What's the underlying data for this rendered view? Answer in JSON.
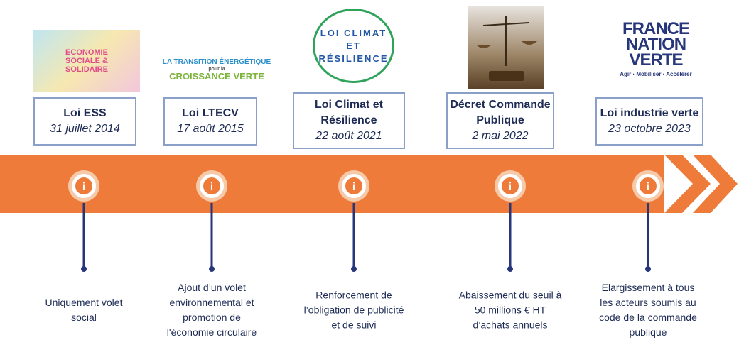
{
  "info_icon": "i",
  "events": [
    {
      "logo": {
        "lines": [
          "ÉCONOMIE",
          "SOCIALE &",
          "SOLIDAIRE"
        ]
      },
      "title": [
        "Loi ESS"
      ],
      "date": "31 juillet 2014",
      "description": [
        "Uniquement volet",
        "social"
      ]
    },
    {
      "logo": {
        "lines": [
          "LA TRANSITION ÉNERGÉTIQUE",
          "pour la",
          "CROISSANCE VERTE"
        ]
      },
      "title": [
        "Loi LTECV"
      ],
      "date": "17 août 2015",
      "description": [
        "Ajout d’un volet",
        "environnemental et",
        "promotion de",
        "l'économie circulaire"
      ]
    },
    {
      "logo": {
        "lines": [
          "LOI CLIMAT",
          "ET",
          "RÉSILIENCE"
        ]
      },
      "title": [
        "Loi Climat et",
        "Résilience"
      ],
      "date": "22 août 2021",
      "description": [
        "Renforcement de",
        "l’obligation de publicité",
        "et de suivi"
      ]
    },
    {
      "title": [
        "Décret Commande",
        "Publique"
      ],
      "date": "2 mai 2022",
      "description": [
        "Abaissement du seuil à",
        "50 millions € HT",
        "d’achats annuels"
      ]
    },
    {
      "logo": {
        "lines": [
          "FRANCE",
          "NATION",
          "VERTE"
        ],
        "tagline": "Agir · Mobiliser · Accélérer"
      },
      "title": [
        "Loi industrie verte"
      ],
      "date": "23 octobre 2023",
      "description": [
        "Elargissement à tous",
        "les acteurs soumis au",
        "code de la commande",
        "publique"
      ]
    }
  ]
}
